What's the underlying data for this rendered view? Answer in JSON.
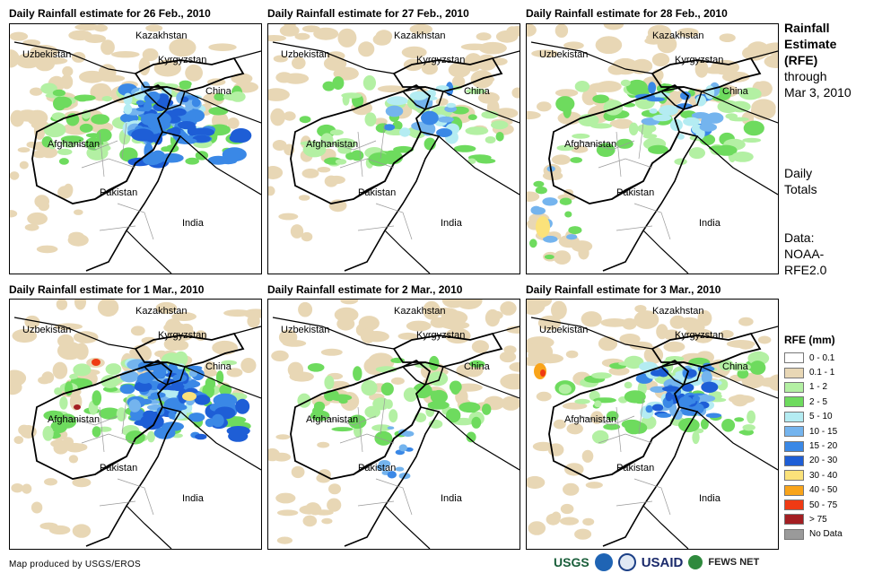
{
  "panels": [
    {
      "title": "Daily Rainfall estimate for 26 Feb., 2010",
      "intensity": 4
    },
    {
      "title": "Daily Rainfall estimate for 27 Feb., 2010",
      "intensity": 2
    },
    {
      "title": "Daily Rainfall estimate for 28 Feb., 2010",
      "intensity": 2
    },
    {
      "title": "Daily Rainfall estimate for 1 Mar., 2010",
      "intensity": 4
    },
    {
      "title": "Daily Rainfall estimate for 2 Mar., 2010",
      "intensity": 1
    },
    {
      "title": "Daily Rainfall estimate for 3 Mar., 2010",
      "intensity": 3
    }
  ],
  "countries": {
    "kazakhstan": "Kazakhstan",
    "uzbekistan": "Uzbekistan",
    "kyrgyzstan": "Kyrgyzstan",
    "china": "China",
    "afghanistan": "Afghanistan",
    "pakistan": "Pakistan",
    "india": "India"
  },
  "side": {
    "title_lines": [
      "Rainfall",
      "Estimate",
      "(RFE)"
    ],
    "through_lines": [
      "through",
      "Mar 3, 2010"
    ],
    "totals_lines": [
      "Daily",
      "Totals"
    ],
    "data_lines": [
      "Data:",
      "NOAA-",
      "RFE2.0"
    ]
  },
  "legend": {
    "title": "RFE (mm)",
    "items": [
      {
        "label": "0 - 0.1",
        "color": "#ffffff"
      },
      {
        "label": "0.1 - 1",
        "color": "#e8d7b5"
      },
      {
        "label": "1 - 2",
        "color": "#b3f0a3"
      },
      {
        "label": "2 - 5",
        "color": "#6edb5e"
      },
      {
        "label": "5 - 10",
        "color": "#b4ecf2"
      },
      {
        "label": "10 - 15",
        "color": "#74b4ee"
      },
      {
        "label": "15 - 20",
        "color": "#3a88e6"
      },
      {
        "label": "20 - 30",
        "color": "#1e5ed6"
      },
      {
        "label": "30 - 40",
        "color": "#fbe27a"
      },
      {
        "label": "40 - 50",
        "color": "#f9a41a"
      },
      {
        "label": "50 - 75",
        "color": "#ef3a14"
      },
      {
        "label": "> 75",
        "color": "#a31e22"
      },
      {
        "label": "No Data",
        "color": "#9a9a9a"
      }
    ]
  },
  "credit": "Map produced by USGS/EROS",
  "logos": {
    "usgs": "USGS",
    "usaid": "USAID",
    "fews": "FEWS NET"
  }
}
